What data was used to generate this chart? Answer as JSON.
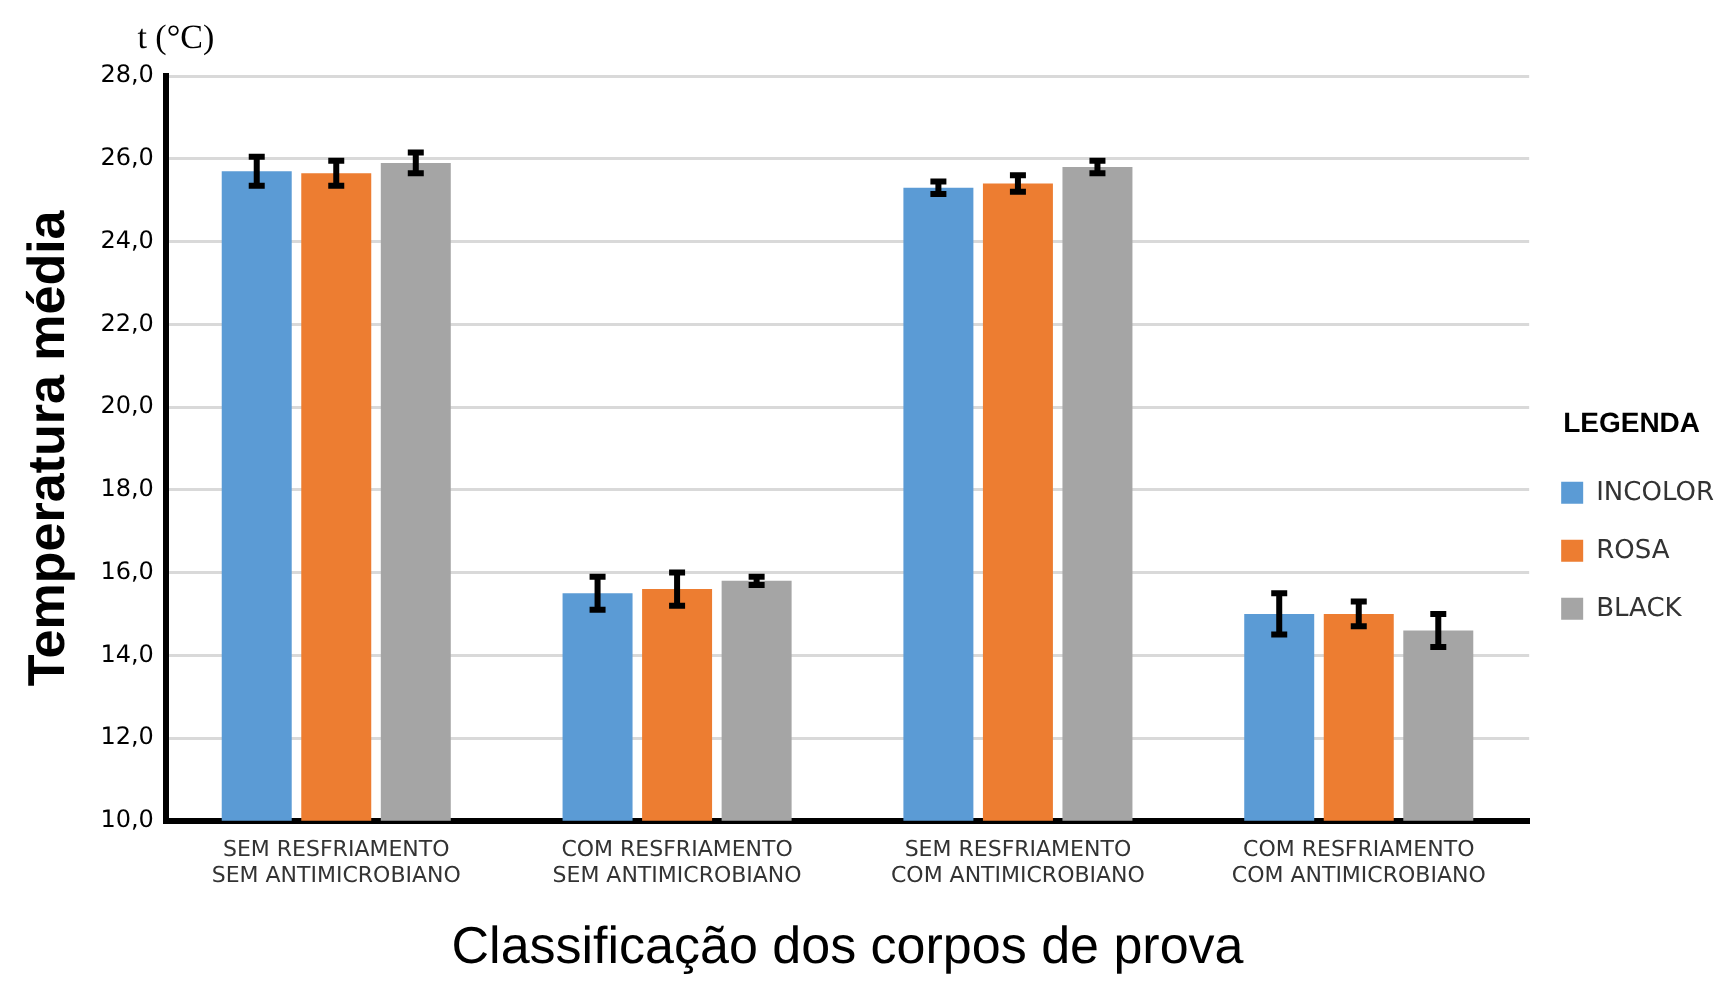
{
  "chart_data": {
    "type": "bar",
    "xlabel": "Classificação dos corpos de prova",
    "ylabel": "Temperatura média",
    "annotations": [
      "t (°C)"
    ],
    "legend_title": "LEGENDA",
    "categories": [
      "SEM RESFRIAMENTO\nSEM ANTIMICROBIANO",
      "COM RESFRIAMENTO\nSEM ANTIMICROBIANO",
      "SEM RESFRIAMENTO\nCOM ANTIMICROBIANO",
      "COM RESFRIAMENTO\nCOM ANTIMICROBIANO"
    ],
    "series": [
      {
        "name": "INCOLOR",
        "color": "#5b9bd5",
        "values": [
          25.7,
          15.5,
          25.3,
          15.0
        ],
        "errors": [
          0.35,
          0.4,
          0.15,
          0.5
        ]
      },
      {
        "name": "ROSA",
        "color": "#ed7d31",
        "values": [
          25.65,
          15.6,
          25.4,
          15.0
        ],
        "errors": [
          0.3,
          0.4,
          0.2,
          0.3
        ]
      },
      {
        "name": "BLACK",
        "color": "#a5a5a5",
        "values": [
          25.9,
          15.8,
          25.8,
          14.6
        ],
        "errors": [
          0.25,
          0.1,
          0.15,
          0.4
        ]
      }
    ],
    "ylim": [
      10,
      28
    ],
    "yticks": [
      {
        "value": 10,
        "label": "10,0"
      },
      {
        "value": 12,
        "label": "12,0"
      },
      {
        "value": 14,
        "label": "14,0"
      },
      {
        "value": 16,
        "label": "16,0"
      },
      {
        "value": 18,
        "label": "18,0"
      },
      {
        "value": 20,
        "label": "20,0"
      },
      {
        "value": 22,
        "label": "22,0"
      },
      {
        "value": 24,
        "label": "24,0"
      },
      {
        "value": 26,
        "label": "26,0"
      },
      {
        "value": 28,
        "label": "28,0"
      }
    ],
    "grid": "y",
    "legend": "right"
  }
}
